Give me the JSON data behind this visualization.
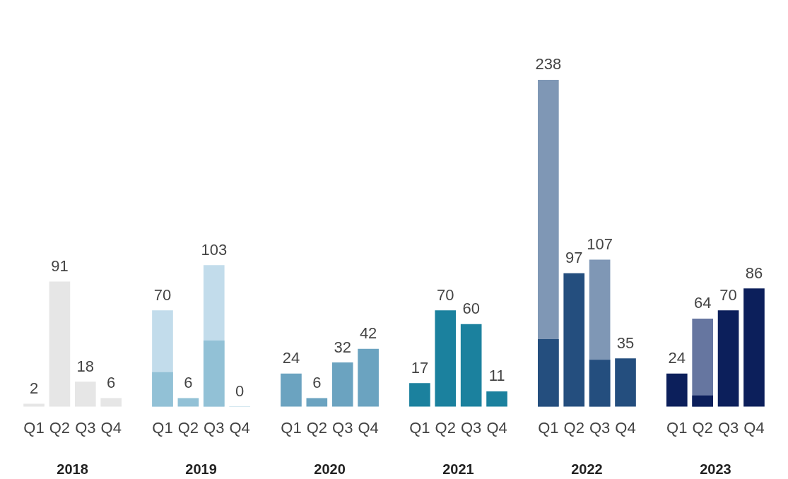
{
  "chart_data": {
    "type": "bar",
    "tick_labels": "x",
    "categories": [
      "Q1",
      "Q2",
      "Q3",
      "Q4",
      "Q1",
      "Q2",
      "Q3",
      "Q4",
      "Q1",
      "Q2",
      "Q3",
      "Q4",
      "Q1",
      "Q2",
      "Q3",
      "Q4",
      "Q1",
      "Q2",
      "Q3",
      "Q4",
      "Q1",
      "Q2",
      "Q3",
      "Q4"
    ],
    "series": [
      {
        "colors": [
          "#e6e6e6",
          "#e6e6e6",
          "#e6e6e6",
          "#e6e6e6",
          "#c2dceb",
          "#92c1d6",
          "#c2dceb",
          "#92c1d6",
          "#6ba3c0",
          "#6ba3c0",
          "#6ba3c0",
          "#6ba3c0",
          "#1b819e",
          "#1b819e",
          "#1b819e",
          "#1b819e",
          "#7f97b5",
          "#244e7e",
          "#7f97b5",
          "#244e7e",
          "#0c1f5b",
          "#6676a0",
          "#0c1f5b",
          "#0c1f5b"
        ],
        "values": [
          2,
          91,
          18,
          6,
          70,
          6,
          103,
          0,
          24,
          6,
          32,
          42,
          17,
          70,
          60,
          11,
          238,
          97,
          107,
          35,
          24,
          64,
          70,
          86
        ],
        "value_labels": [
          "2",
          "91",
          "18",
          "6",
          "70",
          "6",
          "103",
          "0",
          "24",
          "6",
          "32",
          "42",
          "17",
          "70",
          "60",
          "11",
          "238",
          "97",
          "107",
          "35",
          "24",
          "64",
          "70",
          "86"
        ]
      },
      {
        "colors": [
          "#e6e6e6",
          "#e6e6e6",
          "#e6e6e6",
          "#e6e6e6",
          "#92c1d6",
          "#92c1d6",
          "#92c1d6",
          "#92c1d6",
          "#6ba3c0",
          "#6ba3c0",
          "#6ba3c0",
          "#6ba3c0",
          "#1b819e",
          "#1b819e",
          "#1b819e",
          "#1b819e",
          "#244e7e",
          "#244e7e",
          "#244e7e",
          "#244e7e",
          "#0c1f5b",
          "#0c1f5b",
          "#0c1f5b",
          "#0c1f5b"
        ],
        "values": [
          null,
          null,
          null,
          null,
          25,
          null,
          48,
          null,
          null,
          null,
          null,
          null,
          null,
          null,
          null,
          null,
          49,
          null,
          34,
          null,
          null,
          8,
          null,
          null
        ]
      }
    ],
    "annotations": [
      "2018",
      "2019",
      "2020",
      "2021",
      "2022",
      "2023"
    ]
  }
}
